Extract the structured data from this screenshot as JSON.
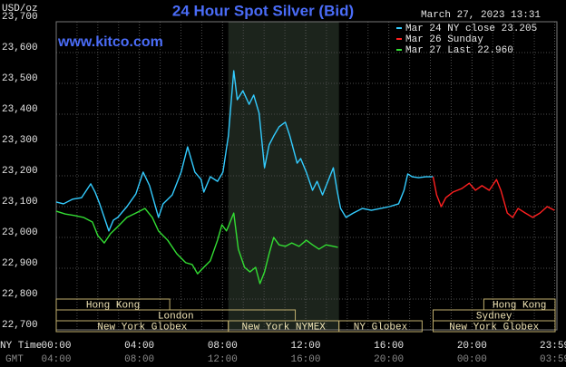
{
  "chart_data": {
    "type": "line",
    "title": "24 Hour Spot Silver (Bid)",
    "timestamp": "March 27, 2023 13:31",
    "watermark": "www.kitco.com",
    "y_label": "USD/oz",
    "x_row_labels": [
      "NY Time",
      "GMT"
    ],
    "xlim": [
      0,
      24
    ],
    "xticks": [
      {
        "value": 0,
        "label": "00:00"
      },
      {
        "value": 4,
        "label": "04:00"
      },
      {
        "value": 8,
        "label": "08:00"
      },
      {
        "value": 12,
        "label": "12:00"
      },
      {
        "value": 16,
        "label": "16:00"
      },
      {
        "value": 20,
        "label": "20:00"
      },
      {
        "value": 23.98,
        "label": "23:59"
      }
    ],
    "gmt_labels": [
      "04:00",
      "08:00",
      "12:00",
      "16:00",
      "20:00",
      "00:00",
      "03:59"
    ],
    "xgrid": [
      1,
      2,
      3,
      5,
      6,
      7,
      9,
      10,
      11,
      13,
      14,
      15,
      17,
      18,
      19,
      21,
      22,
      23
    ],
    "ylim": [
      22.7,
      23.7
    ],
    "yticks": [
      {
        "value": 22.7,
        "label": "22,700"
      },
      {
        "value": 22.8,
        "label": "22,800"
      },
      {
        "value": 22.9,
        "label": "22,900"
      },
      {
        "value": 23.0,
        "label": "23,000"
      },
      {
        "value": 23.1,
        "label": "23,100"
      },
      {
        "value": 23.2,
        "label": "23,200"
      },
      {
        "value": 23.3,
        "label": "23,300"
      },
      {
        "value": 23.4,
        "label": "23,400"
      },
      {
        "value": 23.5,
        "label": "23,500"
      },
      {
        "value": 23.6,
        "label": "23,600"
      },
      {
        "value": 23.7,
        "label": "23,700"
      }
    ],
    "grid": true,
    "shaded_range": [
      8.28,
      13.6
    ],
    "series": [
      {
        "name": "Mar 24 NY close 23.205",
        "color": "#33ccff",
        "x": [
          0,
          0.35,
          0.78,
          1.22,
          1.66,
          1.87,
          2.09,
          2.31,
          2.53,
          2.75,
          2.96,
          3.4,
          3.83,
          4.18,
          4.49,
          4.92,
          5.14,
          5.58,
          6.01,
          6.32,
          6.67,
          6.97,
          7.1,
          7.41,
          7.76,
          8.02,
          8.28,
          8.54,
          8.71,
          8.98,
          9.28,
          9.5,
          9.76,
          10.02,
          10.24,
          10.46,
          10.72,
          11.02,
          11.24,
          11.59,
          11.76,
          12.03,
          12.33,
          12.55,
          12.81,
          13.07,
          13.33,
          13.51,
          13.68,
          13.94,
          14.29,
          14.73,
          15.16,
          15.6,
          16.03,
          16.47,
          16.73,
          16.91,
          17.12,
          17.43,
          17.78,
          18.13
        ],
        "values": [
          23.115,
          23.109,
          23.124,
          23.129,
          23.174,
          23.147,
          23.109,
          23.065,
          23.021,
          23.056,
          23.065,
          23.1,
          23.141,
          23.212,
          23.168,
          23.065,
          23.109,
          23.138,
          23.212,
          23.294,
          23.212,
          23.188,
          23.147,
          23.197,
          23.182,
          23.212,
          23.329,
          23.541,
          23.447,
          23.476,
          23.432,
          23.462,
          23.403,
          23.226,
          23.3,
          23.329,
          23.359,
          23.374,
          23.329,
          23.241,
          23.256,
          23.212,
          23.153,
          23.182,
          23.138,
          23.182,
          23.226,
          23.153,
          23.094,
          23.065,
          23.079,
          23.094,
          23.088,
          23.094,
          23.1,
          23.109,
          23.153,
          23.206,
          23.197,
          23.194,
          23.197,
          23.197
        ]
      },
      {
        "name": "Mar 26 Sunday",
        "color": "#ff2020",
        "x": [
          18.13,
          18.3,
          18.52,
          18.74,
          19.08,
          19.52,
          19.87,
          20.17,
          20.48,
          20.83,
          21.18,
          21.39,
          21.7,
          21.96,
          22.22,
          22.57,
          22.92,
          23.27,
          23.62,
          23.97
        ],
        "values": [
          23.197,
          23.138,
          23.1,
          23.129,
          23.147,
          23.159,
          23.176,
          23.153,
          23.168,
          23.153,
          23.188,
          23.153,
          23.079,
          23.065,
          23.094,
          23.079,
          23.065,
          23.079,
          23.1,
          23.088
        ]
      },
      {
        "name": "Mar 27 Last 22.960",
        "color": "#33dd33",
        "x": [
          0,
          0.44,
          0.87,
          1.31,
          1.74,
          2.0,
          2.31,
          2.61,
          2.96,
          3.4,
          3.83,
          4.27,
          4.62,
          4.92,
          5.36,
          5.8,
          6.23,
          6.54,
          6.8,
          7.1,
          7.41,
          7.76,
          7.97,
          8.19,
          8.54,
          8.76,
          9.06,
          9.32,
          9.59,
          9.8,
          10.02,
          10.24,
          10.46,
          10.72,
          11.02,
          11.33,
          11.68,
          12.03,
          12.33,
          12.64,
          12.98,
          13.33,
          13.55
        ],
        "values": [
          23.085,
          23.076,
          23.071,
          23.065,
          23.05,
          23.006,
          22.982,
          23.012,
          23.035,
          23.065,
          23.079,
          23.094,
          23.065,
          23.021,
          22.991,
          22.947,
          22.918,
          22.912,
          22.882,
          22.903,
          22.924,
          22.991,
          23.041,
          23.021,
          23.079,
          22.962,
          22.903,
          22.888,
          22.903,
          22.85,
          22.888,
          22.947,
          23.0,
          22.976,
          22.971,
          22.982,
          22.971,
          22.991,
          22.976,
          22.962,
          22.976,
          22.971,
          22.968
        ]
      }
    ],
    "session_rows": [
      [
        {
          "name": "Hong Kong",
          "start": 0,
          "end": 5.46
        },
        {
          "name": "Hong Kong",
          "start": 20.57,
          "end": 24
        }
      ],
      [
        {
          "name": "London",
          "start": 0,
          "end": 11.5
        },
        {
          "name": "Sydney",
          "start": 18.13,
          "end": 24
        }
      ],
      [
        {
          "name": "New York Globex",
          "start": 0,
          "end": 8.28
        },
        {
          "name": "New York NYMEX",
          "start": 8.28,
          "end": 13.6
        },
        {
          "name": "NY Globex",
          "start": 13.6,
          "end": 17.6
        },
        {
          "name": "New York Globex",
          "start": 18.13,
          "end": 24
        }
      ]
    ]
  }
}
